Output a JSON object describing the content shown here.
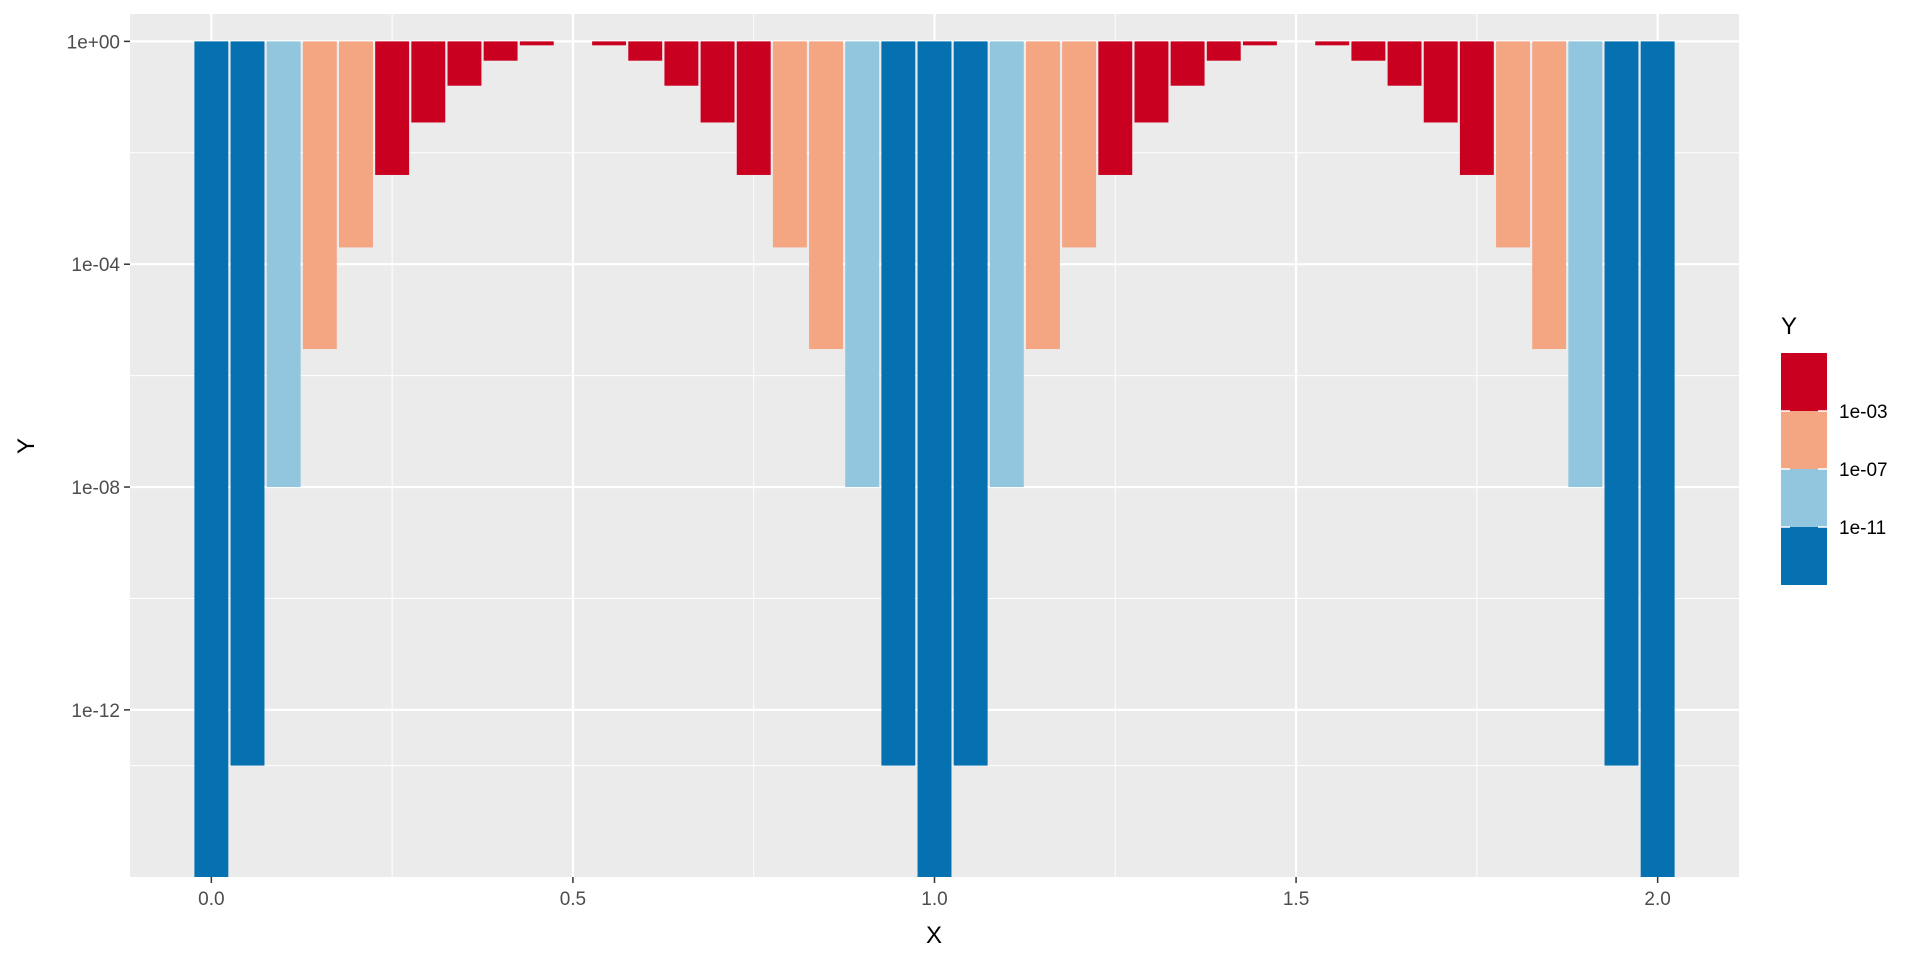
{
  "chart_data": {
    "type": "bar",
    "xlabel": "X",
    "ylabel": "Y",
    "y_scale": "log10",
    "ylim": [
      1e-15,
      3.1
    ],
    "xlim": [
      -0.1125,
      2.1125
    ],
    "baseline": 1,
    "bar_width": 0.0469,
    "x_ticks": [
      0.0,
      0.5,
      1.0,
      1.5,
      2.0
    ],
    "x_tick_labels": [
      "0.0",
      "0.5",
      "1.0",
      "1.5",
      "2.0"
    ],
    "y_ticks": [
      1,
      0.0001,
      1e-08,
      1e-12
    ],
    "y_tick_labels": [
      "1e+00",
      "1e-04",
      "1e-08",
      "1e-12"
    ],
    "grid": true,
    "legend": {
      "title": "Y",
      "position": "right",
      "labels": [
        "1e-03",
        "1e-07",
        "1e-11"
      ],
      "colors": [
        "#ca0020",
        "#f4a582",
        "#92c5de",
        "#0571b0"
      ]
    },
    "points": [
      {
        "x": 0.0,
        "y": 1e-15
      },
      {
        "x": 0.05,
        "y": 1e-13
      },
      {
        "x": 0.1,
        "y": 1e-08
      },
      {
        "x": 0.15,
        "y": 3e-06
      },
      {
        "x": 0.2,
        "y": 0.0002
      },
      {
        "x": 0.25,
        "y": 0.004
      },
      {
        "x": 0.3,
        "y": 0.035
      },
      {
        "x": 0.35,
        "y": 0.16
      },
      {
        "x": 0.4,
        "y": 0.45
      },
      {
        "x": 0.45,
        "y": 0.85
      },
      {
        "x": 0.55,
        "y": 0.85
      },
      {
        "x": 0.6,
        "y": 0.45
      },
      {
        "x": 0.65,
        "y": 0.16
      },
      {
        "x": 0.7,
        "y": 0.035
      },
      {
        "x": 0.75,
        "y": 0.004
      },
      {
        "x": 0.8,
        "y": 0.0002
      },
      {
        "x": 0.85,
        "y": 3e-06
      },
      {
        "x": 0.9,
        "y": 1e-08
      },
      {
        "x": 0.95,
        "y": 1e-13
      },
      {
        "x": 1.0,
        "y": 1e-15
      },
      {
        "x": 1.05,
        "y": 1e-13
      },
      {
        "x": 1.1,
        "y": 1e-08
      },
      {
        "x": 1.15,
        "y": 3e-06
      },
      {
        "x": 1.2,
        "y": 0.0002
      },
      {
        "x": 1.25,
        "y": 0.004
      },
      {
        "x": 1.3,
        "y": 0.035
      },
      {
        "x": 1.35,
        "y": 0.16
      },
      {
        "x": 1.4,
        "y": 0.45
      },
      {
        "x": 1.45,
        "y": 0.85
      },
      {
        "x": 1.55,
        "y": 0.85
      },
      {
        "x": 1.6,
        "y": 0.45
      },
      {
        "x": 1.65,
        "y": 0.16
      },
      {
        "x": 1.7,
        "y": 0.035
      },
      {
        "x": 1.75,
        "y": 0.004
      },
      {
        "x": 1.8,
        "y": 0.0002
      },
      {
        "x": 1.85,
        "y": 3e-06
      },
      {
        "x": 1.9,
        "y": 1e-08
      },
      {
        "x": 1.95,
        "y": 1e-13
      },
      {
        "x": 2.0,
        "y": 1e-15
      }
    ]
  }
}
